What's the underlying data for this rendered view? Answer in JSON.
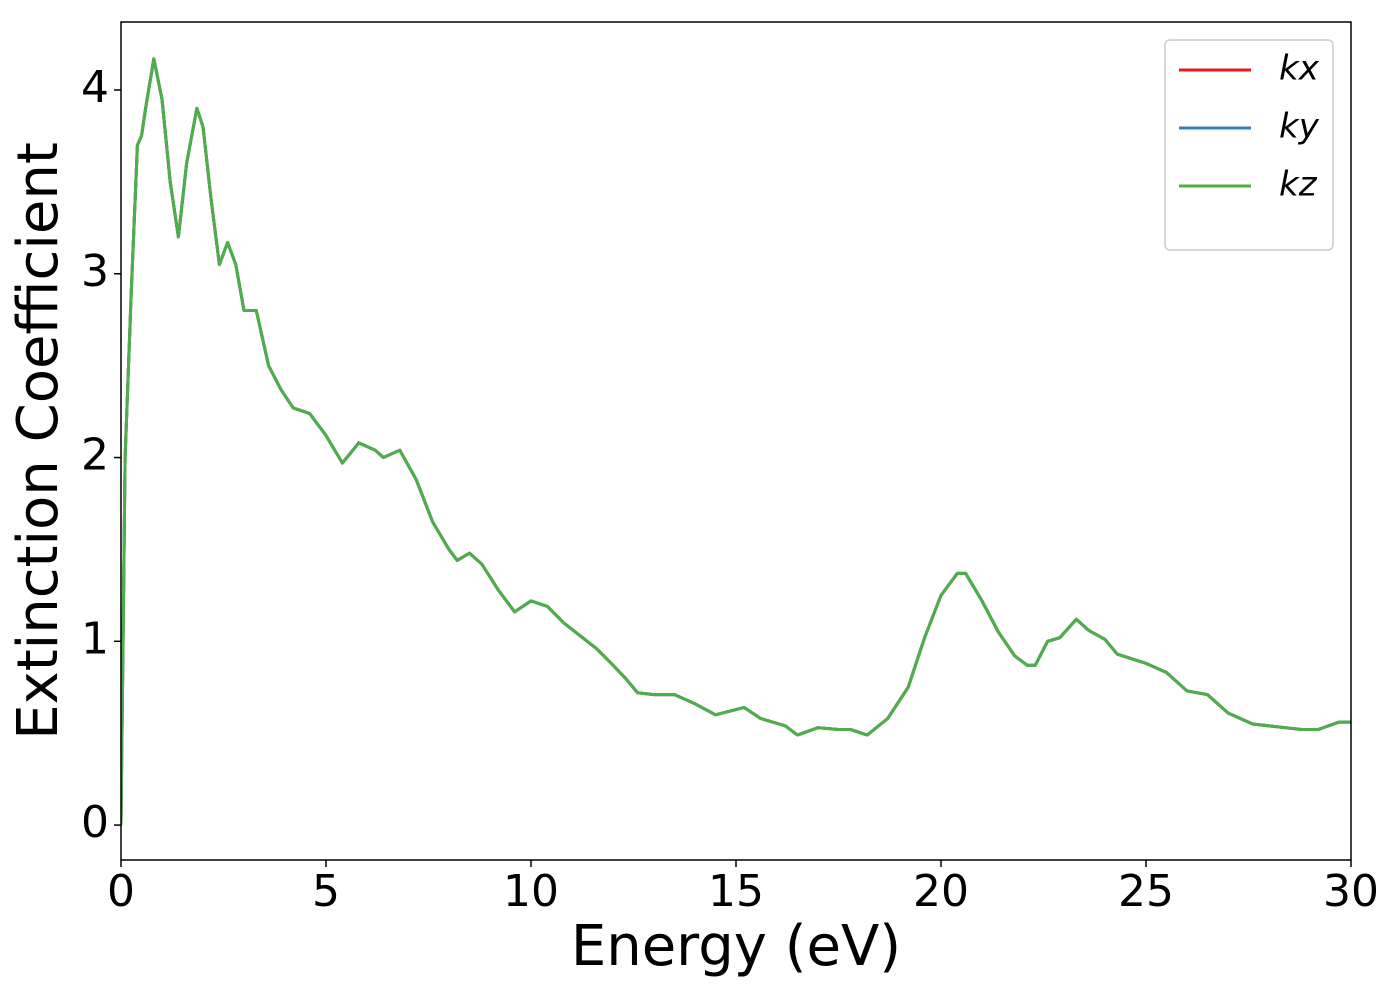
{
  "chart_data": {
    "type": "line",
    "xlabel": "Energy (eV)",
    "ylabel": "Extinction Coefficient",
    "x": [
      0,
      0.1,
      0.25,
      0.4,
      0.5,
      0.6,
      0.8,
      1,
      1.2,
      1.4,
      1.6,
      1.85,
      2,
      2.2,
      2.4,
      2.6,
      2.8,
      3,
      3.3,
      3.6,
      3.9,
      4.2,
      4.6,
      5,
      5.4,
      5.8,
      6.2,
      6.4,
      6.8,
      7.2,
      7.6,
      8,
      8.2,
      8.5,
      8.8,
      9.2,
      9.6,
      10,
      10.4,
      10.8,
      11.2,
      11.6,
      12,
      12.3,
      12.6,
      13,
      13.5,
      14,
      14.5,
      15.2,
      15.6,
      16.2,
      16.5,
      17,
      17.5,
      17.8,
      18.2,
      18.7,
      19.2,
      19.6,
      20,
      20.4,
      20.6,
      21,
      21.4,
      21.8,
      22.1,
      22.3,
      22.6,
      22.9,
      23.3,
      23.6,
      24,
      24.3,
      25,
      25.5,
      26,
      26.5,
      27,
      27.6,
      28,
      28.8,
      29.2,
      29.7,
      30
    ],
    "series": [
      {
        "name": "kx",
        "color": "#e41a1c",
        "values": [
          0,
          2,
          2.9,
          3.7,
          3.75,
          3.9,
          4.17,
          3.95,
          3.5,
          3.2,
          3.6,
          3.9,
          3.8,
          3.4,
          3.05,
          3.17,
          3.05,
          2.8,
          2.8,
          2.5,
          2.37,
          2.27,
          2.24,
          2.12,
          1.97,
          2.08,
          2.04,
          2,
          2.04,
          1.88,
          1.65,
          1.5,
          1.44,
          1.48,
          1.42,
          1.28,
          1.16,
          1.22,
          1.19,
          1.1,
          1.03,
          0.96,
          0.87,
          0.8,
          0.72,
          0.71,
          0.71,
          0.66,
          0.6,
          0.64,
          0.58,
          0.54,
          0.49,
          0.53,
          0.52,
          0.52,
          0.49,
          0.58,
          0.75,
          1.02,
          1.25,
          1.37,
          1.37,
          1.22,
          1.05,
          0.92,
          0.87,
          0.87,
          1,
          1.02,
          1.12,
          1.06,
          1.01,
          0.93,
          0.88,
          0.83,
          0.73,
          0.71,
          0.61,
          0.55,
          0.54,
          0.52,
          0.52,
          0.56,
          0.56
        ]
      },
      {
        "name": "ky",
        "color": "#377eb8",
        "values": [
          0,
          2,
          2.9,
          3.7,
          3.75,
          3.9,
          4.17,
          3.95,
          3.5,
          3.2,
          3.6,
          3.9,
          3.8,
          3.4,
          3.05,
          3.17,
          3.05,
          2.8,
          2.8,
          2.5,
          2.37,
          2.27,
          2.24,
          2.12,
          1.97,
          2.08,
          2.04,
          2,
          2.04,
          1.88,
          1.65,
          1.5,
          1.44,
          1.48,
          1.42,
          1.28,
          1.16,
          1.22,
          1.19,
          1.1,
          1.03,
          0.96,
          0.87,
          0.8,
          0.72,
          0.71,
          0.71,
          0.66,
          0.6,
          0.64,
          0.58,
          0.54,
          0.49,
          0.53,
          0.52,
          0.52,
          0.49,
          0.58,
          0.75,
          1.02,
          1.25,
          1.37,
          1.37,
          1.22,
          1.05,
          0.92,
          0.87,
          0.87,
          1,
          1.02,
          1.12,
          1.06,
          1.01,
          0.93,
          0.88,
          0.83,
          0.73,
          0.71,
          0.61,
          0.55,
          0.54,
          0.52,
          0.52,
          0.56,
          0.56
        ]
      },
      {
        "name": "kz",
        "color": "#4daf4a",
        "values": [
          0,
          2,
          2.9,
          3.7,
          3.75,
          3.9,
          4.17,
          3.95,
          3.5,
          3.2,
          3.6,
          3.9,
          3.8,
          3.4,
          3.05,
          3.17,
          3.05,
          2.8,
          2.8,
          2.5,
          2.37,
          2.27,
          2.24,
          2.12,
          1.97,
          2.08,
          2.04,
          2,
          2.04,
          1.88,
          1.65,
          1.5,
          1.44,
          1.48,
          1.42,
          1.28,
          1.16,
          1.22,
          1.19,
          1.1,
          1.03,
          0.96,
          0.87,
          0.8,
          0.72,
          0.71,
          0.71,
          0.66,
          0.6,
          0.64,
          0.58,
          0.54,
          0.49,
          0.53,
          0.52,
          0.52,
          0.49,
          0.58,
          0.75,
          1.02,
          1.25,
          1.37,
          1.37,
          1.22,
          1.05,
          0.92,
          0.87,
          0.87,
          1,
          1.02,
          1.12,
          1.06,
          1.01,
          0.93,
          0.88,
          0.83,
          0.73,
          0.71,
          0.61,
          0.55,
          0.54,
          0.52,
          0.52,
          0.56,
          0.56
        ]
      }
    ],
    "xlim": [
      0,
      30
    ],
    "xticks": [
      0,
      5,
      10,
      15,
      20,
      25,
      30
    ],
    "ylim": [
      -0.19,
      4.37
    ],
    "yticks": [
      0,
      1,
      2,
      3,
      4
    ],
    "legend": "upper right",
    "grid": false
  }
}
